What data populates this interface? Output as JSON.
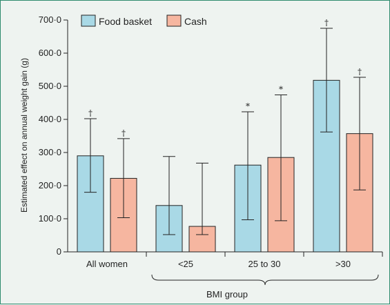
{
  "chart_data": {
    "type": "bar",
    "ylabel": "Estimated effect on annual weight gain (g)",
    "xlabel": "BMI group",
    "ylim": [
      0,
      700
    ],
    "yticks": [
      0,
      100,
      200,
      300,
      400,
      500,
      600,
      700
    ],
    "ytick_labels": [
      "0",
      "100·0",
      "200·0",
      "300·0",
      "400·0",
      "500·0",
      "600·0",
      "700·0"
    ],
    "categories": [
      "All women",
      "<25",
      "25 to 30",
      ">30"
    ],
    "bracketed_categories": [
      "<25",
      "25 to 30",
      ">30"
    ],
    "legend_position": "top-left",
    "grid": false,
    "series": [
      {
        "name": "Food basket",
        "color": "#a9d9e6",
        "values": [
          290,
          140,
          262,
          518
        ],
        "ci_low": [
          180,
          52,
          97,
          362
        ],
        "ci_high": [
          402,
          288,
          423,
          675
        ],
        "significance": [
          "†",
          "",
          "*",
          "†"
        ]
      },
      {
        "name": "Cash",
        "color": "#f6b6a0",
        "values": [
          222,
          77,
          285,
          357
        ],
        "ci_low": [
          103,
          52,
          94,
          187
        ],
        "ci_high": [
          342,
          268,
          474,
          527
        ],
        "significance": [
          "†",
          "",
          "*",
          "†"
        ]
      }
    ]
  }
}
